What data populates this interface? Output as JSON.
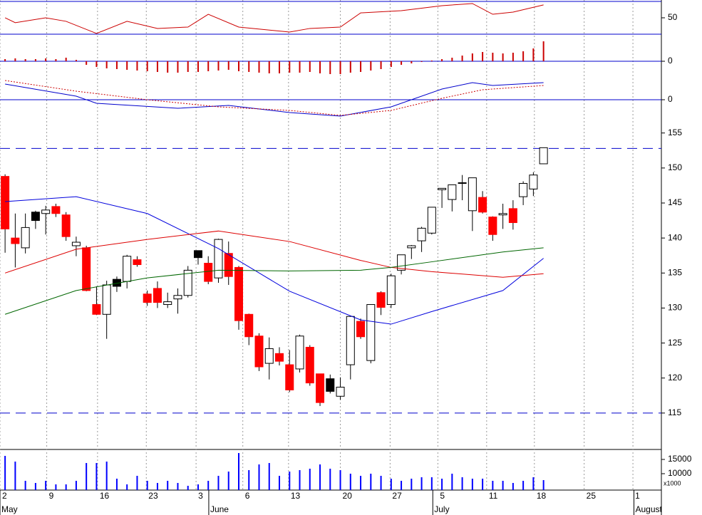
{
  "chart_data": [
    {
      "type": "line",
      "ylim": [
        30,
        71.7
      ],
      "yticks": [
        50
      ],
      "hlines": [
        70,
        30
      ],
      "hline_color": "#0000cc",
      "series": [
        {
          "color": "#cc0000",
          "x": [
            0,
            1,
            4,
            6,
            9,
            12,
            15,
            18,
            20,
            23,
            28,
            30,
            33,
            35,
            39,
            43,
            46,
            48,
            50,
            53
          ],
          "values": [
            50,
            44,
            50,
            45.7,
            30.9,
            45.7,
            37,
            38.7,
            54.3,
            38.7,
            32.6,
            37,
            38.7,
            56,
            58.7,
            64.8,
            67.4,
            54.3,
            56.9,
            65.7
          ]
        }
      ]
    },
    {
      "type": "bar",
      "ylim": [
        -26,
        38
      ],
      "yticks": [
        0
      ],
      "hlines": [
        0
      ],
      "hline_color": "#0000cc",
      "color": "#cc0000",
      "x": [
        0,
        1,
        2,
        3,
        4,
        5,
        6,
        7,
        8,
        9,
        10,
        11,
        12,
        13,
        14,
        15,
        16,
        17,
        18,
        19,
        20,
        21,
        22,
        23,
        24,
        25,
        26,
        27,
        28,
        29,
        30,
        31,
        32,
        33,
        34,
        35,
        36,
        37,
        38,
        39,
        40,
        41,
        42,
        43,
        44,
        45,
        46,
        47,
        48,
        49,
        50,
        51,
        52,
        53
      ],
      "values": [
        3,
        4,
        3,
        3,
        4,
        3,
        5,
        2,
        -5,
        -8,
        -10,
        -11,
        -12,
        -13,
        -14,
        -15,
        -16,
        -16,
        -15,
        -15,
        -14,
        -13,
        -12,
        -14,
        -15,
        -16,
        -17,
        -17,
        -16,
        -16,
        -15,
        -17,
        -18,
        -18,
        -16,
        -15,
        -13,
        -11,
        -8,
        -5,
        -3,
        -1,
        1,
        3,
        5,
        8,
        11,
        13,
        12,
        11,
        12,
        14,
        18,
        28
      ]
    },
    {
      "type": "line",
      "ylim": [
        -30,
        28
      ],
      "yticks": [
        0
      ],
      "hlines": [
        0
      ],
      "hline_color": "#0000cc",
      "series": [
        {
          "color": "#0000cc",
          "x": [
            0,
            7,
            9,
            17,
            22,
            28,
            33,
            38,
            43,
            46,
            48,
            53
          ],
          "values": [
            22,
            5,
            -5,
            -12,
            -8,
            -18,
            -23,
            -10,
            15,
            24,
            20,
            24
          ]
        },
        {
          "color": "#cc0000",
          "style": "dotted",
          "x": [
            0,
            7,
            14,
            21,
            28,
            33,
            38,
            43,
            47,
            53
          ],
          "values": [
            27,
            12,
            0,
            -10,
            -15,
            -22,
            -15,
            2,
            14,
            20
          ]
        }
      ]
    },
    {
      "type": "candlestick",
      "ylim": [
        109.9,
        156.7
      ],
      "yticks": [
        115,
        120,
        125,
        130,
        135,
        140,
        145,
        150,
        155
      ],
      "hlines": [
        152.8,
        115
      ],
      "hline_color": "#0000cc",
      "hline_dash": true,
      "x": [
        0,
        1,
        2,
        3,
        4,
        5,
        6,
        7,
        8,
        9,
        10,
        11,
        12,
        13,
        14,
        15,
        16,
        17,
        18,
        19,
        20,
        21,
        22,
        23,
        24,
        25,
        26,
        27,
        28,
        29,
        30,
        31,
        32,
        33,
        34,
        35,
        36,
        37,
        38,
        39,
        40,
        41,
        42,
        43,
        44,
        45,
        46,
        47,
        48,
        49,
        50,
        51,
        52,
        53
      ],
      "open": [
        148.8,
        140,
        138.6,
        142.5,
        143.5,
        144.5,
        143.3,
        138.9,
        138.6,
        130.5,
        129.1,
        133.1,
        133.8,
        136.9,
        132.0,
        132.8,
        130.5,
        131.3,
        131.8,
        137.2,
        136.4,
        134.3,
        137.8,
        135.8,
        129.1,
        126.0,
        122.1,
        123.5,
        121.9,
        121.3,
        124.4,
        120.6,
        118.1,
        117.4,
        121.9,
        128.1,
        122.5,
        132.2,
        130.5,
        135.4,
        138.6,
        139.6,
        140.7,
        146.9,
        145.5,
        147.8,
        143.9,
        145.8,
        143.0,
        143.3,
        144.2,
        145.9,
        147.0,
        150.6
      ],
      "high": [
        149.1,
        143.5,
        143.5,
        143.9,
        144.6,
        144.9,
        143.7,
        140.2,
        138.9,
        133.1,
        133.9,
        134.5,
        137.6,
        137.4,
        132.5,
        133.8,
        132.2,
        132.8,
        136.0,
        138.2,
        137.4,
        139.9,
        139.5,
        136.0,
        129.2,
        126.4,
        125.8,
        124.4,
        124.0,
        126.2,
        124.7,
        120.6,
        120.5,
        120.1,
        128.9,
        128.5,
        130.5,
        132.4,
        134.9,
        137.6,
        139.0,
        141.6,
        144.4,
        147.1,
        147.6,
        149.0,
        148.6,
        146.7,
        143.1,
        144.9,
        145.4,
        148.1,
        149.4,
        152.9
      ],
      "low": [
        137.9,
        135.8,
        137.8,
        141.3,
        140.5,
        143.0,
        139.6,
        137.4,
        132.4,
        129.0,
        125.6,
        132.3,
        132.8,
        135.9,
        130.3,
        130.0,
        130.0,
        129.2,
        131.5,
        136.2,
        133.4,
        133.6,
        133.3,
        126.9,
        124.7,
        121.0,
        119.8,
        121.8,
        118.0,
        120.8,
        118.9,
        116.0,
        117.8,
        116.9,
        119.8,
        125.6,
        122.1,
        129.0,
        130.0,
        134.8,
        137.0,
        138.0,
        140.5,
        144.3,
        143.8,
        145.4,
        141.0,
        143.5,
        139.6,
        141.3,
        141.2,
        144.7,
        146.0,
        150.6
      ],
      "close": [
        141.3,
        139.2,
        141.5,
        143.7,
        144.0,
        143.5,
        140.2,
        139.4,
        132.5,
        129.1,
        133.3,
        134.1,
        137.4,
        136.2,
        130.8,
        130.8,
        130.9,
        131.8,
        135.4,
        138.2,
        133.8,
        139.8,
        134.5,
        128.2,
        125.9,
        121.6,
        124.2,
        122.4,
        118.3,
        126.0,
        119.3,
        116.5,
        119.9,
        118.7,
        128.8,
        125.9,
        130.5,
        130.1,
        134.6,
        137.6,
        138.9,
        141.4,
        144.4,
        147.1,
        147.6,
        147.9,
        148.6,
        143.7,
        140.5,
        143.5,
        142.2,
        147.8,
        149.0,
        152.9
      ],
      "fills": [
        "#ff0000",
        "#ff0000",
        "#ffffff",
        "#000000",
        "#ffffff",
        "#ff0000",
        "#ff0000",
        "#ffffff",
        "#ff0000",
        "#ff0000",
        "#ffffff",
        "#000000",
        "#ffffff",
        "#ff0000",
        "#ff0000",
        "#ff0000",
        "#ffffff",
        "#ffffff",
        "#ffffff",
        "#000000",
        "#ff0000",
        "#ffffff",
        "#ff0000",
        "#ff0000",
        "#ff0000",
        "#ff0000",
        "#ffffff",
        "#ff0000",
        "#ff0000",
        "#ffffff",
        "#ff0000",
        "#ff0000",
        "#000000",
        "#ffffff",
        "#ffffff",
        "#ff0000",
        "#ffffff",
        "#ff0000",
        "#ffffff",
        "#ffffff",
        "#ffffff",
        "#ffffff",
        "#ffffff",
        "#ffffff",
        "#ffffff",
        "#ffffff",
        "#ffffff",
        "#ff0000",
        "#ff0000",
        "#ffffff",
        "#ff0000",
        "#ffffff",
        "#ffffff",
        "#ffffff"
      ],
      "series": [
        {
          "color": "#0000dd",
          "x": [
            0,
            7,
            14,
            21,
            28,
            35,
            38,
            42,
            49,
            53
          ],
          "values": [
            145.2,
            145.9,
            143.5,
            138.5,
            132.4,
            128.3,
            127.7,
            129.5,
            132.5,
            137.1
          ]
        },
        {
          "color": "#dd0000",
          "x": [
            0,
            7,
            14,
            21,
            28,
            35,
            38,
            42,
            49,
            53
          ],
          "values": [
            135.0,
            138.4,
            139.8,
            141.0,
            139.5,
            136.8,
            135.8,
            135.2,
            134.4,
            134.9
          ]
        },
        {
          "color": "#006600",
          "x": [
            0,
            7,
            14,
            21,
            28,
            35,
            38,
            42,
            49,
            53
          ],
          "values": [
            129.1,
            132.5,
            134.3,
            135.4,
            135.3,
            135.4,
            135.8,
            136.6,
            138.0,
            138.6
          ]
        }
      ]
    },
    {
      "type": "bar",
      "ylim": [
        4250,
        18250
      ],
      "yticks": [
        10000,
        15000
      ],
      "unit_label": "x1000",
      "color": "#0000ff",
      "x": [
        0,
        1,
        2,
        3,
        4,
        5,
        6,
        7,
        8,
        9,
        10,
        11,
        12,
        13,
        14,
        15,
        16,
        17,
        18,
        19,
        20,
        21,
        22,
        23,
        24,
        25,
        26,
        27,
        28,
        29,
        30,
        31,
        32,
        33,
        34,
        35,
        36,
        37,
        38,
        39,
        40,
        41,
        42,
        43,
        44,
        45,
        46,
        47,
        48,
        49,
        50,
        51,
        52,
        53
      ],
      "values": [
        16250,
        14250,
        7500,
        6750,
        7500,
        6250,
        6250,
        7500,
        13750,
        13750,
        14250,
        8250,
        6250,
        9250,
        7500,
        6750,
        7500,
        6750,
        5750,
        6250,
        7500,
        9250,
        10750,
        17250,
        11250,
        13250,
        13750,
        9250,
        10750,
        11250,
        11750,
        13250,
        11750,
        11250,
        10000,
        9250,
        10000,
        9250,
        8250,
        7500,
        8250,
        8750,
        8750,
        8250,
        10000,
        8750,
        8250,
        8250,
        7500,
        7500,
        6750,
        7500,
        8750,
        7750
      ],
      "xlim": [
        -0.5,
        64.6
      ],
      "xticks": [
        {
          "value": -0.5,
          "label": "2"
        },
        {
          "value": 4.1,
          "label": "9"
        },
        {
          "value": 9.1,
          "label": "16"
        },
        {
          "value": 13.9,
          "label": "23"
        },
        {
          "value": 18.8,
          "label": "3"
        },
        {
          "value": 23.4,
          "label": "6"
        },
        {
          "value": 27.9,
          "label": "13"
        },
        {
          "value": 33.0,
          "label": "20"
        },
        {
          "value": 37.9,
          "label": "27"
        },
        {
          "value": 42.6,
          "label": "5"
        },
        {
          "value": 47.4,
          "label": "11"
        },
        {
          "value": 52.1,
          "label": "18"
        },
        {
          "value": 57.0,
          "label": "25"
        },
        {
          "value": 61.8,
          "label": "1"
        }
      ],
      "months": [
        {
          "value": -0.5,
          "label": "May"
        },
        {
          "value": 20.05,
          "label": "June"
        },
        {
          "value": 42.1,
          "label": "July"
        },
        {
          "value": 61.9,
          "label": "August"
        }
      ]
    }
  ]
}
